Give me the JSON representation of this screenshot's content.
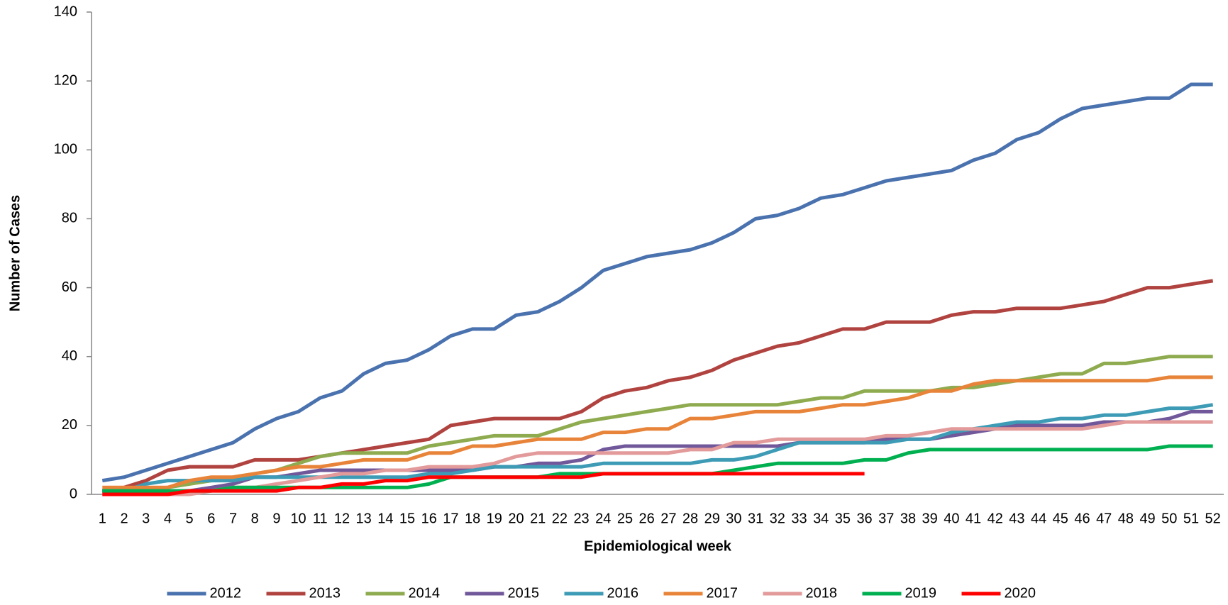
{
  "chart_data": {
    "type": "line",
    "x_label": "Epidemiological week",
    "y_label": "Number of Cases",
    "categories": [
      1,
      2,
      3,
      4,
      5,
      6,
      7,
      8,
      9,
      10,
      11,
      12,
      13,
      14,
      15,
      16,
      17,
      18,
      19,
      20,
      21,
      22,
      23,
      24,
      25,
      26,
      27,
      28,
      29,
      30,
      31,
      32,
      33,
      34,
      35,
      36,
      37,
      38,
      39,
      40,
      41,
      42,
      43,
      44,
      45,
      46,
      47,
      48,
      49,
      50,
      51,
      52
    ],
    "ylim": [
      0,
      140
    ],
    "yticks": [
      0,
      20,
      40,
      60,
      80,
      100,
      120,
      140
    ],
    "grid": false,
    "legend": "bottom",
    "series": [
      {
        "name": "2012",
        "color": "#4a72ae",
        "values": [
          4,
          5,
          7,
          9,
          11,
          13,
          15,
          19,
          22,
          24,
          28,
          30,
          35,
          38,
          39,
          42,
          46,
          48,
          48,
          52,
          53,
          56,
          60,
          65,
          67,
          69,
          70,
          71,
          73,
          76,
          80,
          81,
          83,
          86,
          87,
          89,
          91,
          92,
          93,
          94,
          97,
          99,
          103,
          105,
          109,
          112,
          113,
          114,
          115,
          115,
          119,
          119
        ]
      },
      {
        "name": "2013",
        "color": "#b0433f",
        "values": [
          1,
          2,
          4,
          7,
          8,
          8,
          8,
          10,
          10,
          10,
          11,
          12,
          13,
          14,
          15,
          16,
          20,
          21,
          22,
          22,
          22,
          22,
          24,
          28,
          30,
          31,
          33,
          34,
          36,
          39,
          41,
          43,
          44,
          46,
          48,
          48,
          50,
          50,
          50,
          52,
          53,
          53,
          54,
          54,
          54,
          55,
          56,
          58,
          60,
          60,
          61,
          62
        ]
      },
      {
        "name": "2014",
        "color": "#8eab4f",
        "values": [
          1,
          1,
          1,
          2,
          3,
          4,
          5,
          6,
          7,
          9,
          11,
          12,
          12,
          12,
          12,
          14,
          15,
          16,
          17,
          17,
          17,
          19,
          21,
          22,
          23,
          24,
          25,
          26,
          26,
          26,
          26,
          26,
          27,
          28,
          28,
          30,
          30,
          30,
          30,
          31,
          31,
          32,
          33,
          34,
          35,
          35,
          38,
          38,
          39,
          40,
          40,
          40
        ]
      },
      {
        "name": "2015",
        "color": "#71589a",
        "values": [
          1,
          1,
          1,
          1,
          1,
          2,
          3,
          5,
          5,
          6,
          7,
          7,
          7,
          7,
          7,
          7,
          7,
          7,
          8,
          8,
          9,
          9,
          10,
          13,
          14,
          14,
          14,
          14,
          14,
          14,
          14,
          14,
          15,
          15,
          15,
          15,
          16,
          16,
          16,
          17,
          18,
          19,
          20,
          20,
          20,
          20,
          21,
          21,
          21,
          22,
          24,
          24
        ]
      },
      {
        "name": "2016",
        "color": "#3d9bb5",
        "values": [
          1,
          1,
          3,
          4,
          4,
          4,
          4,
          5,
          5,
          5,
          5,
          5,
          5,
          5,
          5,
          6,
          6,
          7,
          8,
          8,
          8,
          8,
          8,
          9,
          9,
          9,
          9,
          9,
          10,
          10,
          11,
          13,
          15,
          15,
          15,
          15,
          15,
          16,
          16,
          18,
          19,
          20,
          21,
          21,
          22,
          22,
          23,
          23,
          24,
          25,
          25,
          26
        ]
      },
      {
        "name": "2017",
        "color": "#e8843a",
        "values": [
          2,
          2,
          2,
          2,
          4,
          5,
          5,
          6,
          7,
          8,
          8,
          9,
          10,
          10,
          10,
          12,
          12,
          14,
          14,
          15,
          16,
          16,
          16,
          18,
          18,
          19,
          19,
          22,
          22,
          23,
          24,
          24,
          24,
          25,
          26,
          26,
          27,
          28,
          30,
          30,
          32,
          33,
          33,
          33,
          33,
          33,
          33,
          33,
          33,
          34,
          34,
          34
        ]
      },
      {
        "name": "2018",
        "color": "#e39a9a",
        "values": [
          0,
          0,
          0,
          0,
          0,
          1,
          2,
          2,
          3,
          4,
          5,
          6,
          6,
          7,
          7,
          8,
          8,
          8,
          9,
          11,
          12,
          12,
          12,
          12,
          12,
          12,
          12,
          13,
          13,
          15,
          15,
          16,
          16,
          16,
          16,
          16,
          17,
          17,
          18,
          19,
          19,
          19,
          19,
          19,
          19,
          19,
          20,
          21,
          21,
          21,
          21,
          21
        ]
      },
      {
        "name": "2019",
        "color": "#00b050",
        "values": [
          1,
          1,
          1,
          1,
          1,
          1,
          2,
          2,
          2,
          2,
          2,
          2,
          2,
          2,
          2,
          3,
          5,
          5,
          5,
          5,
          5,
          6,
          6,
          6,
          6,
          6,
          6,
          6,
          6,
          7,
          8,
          9,
          9,
          9,
          9,
          10,
          10,
          12,
          13,
          13,
          13,
          13,
          13,
          13,
          13,
          13,
          13,
          13,
          13,
          14,
          14,
          14
        ]
      },
      {
        "name": "2020",
        "color": "#ff0000",
        "values": [
          0,
          0,
          0,
          0,
          1,
          1,
          1,
          1,
          1,
          2,
          2,
          3,
          3,
          4,
          4,
          5,
          5,
          5,
          5,
          5,
          5,
          5,
          5,
          6,
          6,
          6,
          6,
          6,
          6,
          6,
          6,
          6,
          6,
          6,
          6,
          6,
          null,
          null,
          null,
          null,
          null,
          null,
          null,
          null,
          null,
          null,
          null,
          null,
          null,
          null,
          null,
          null
        ]
      }
    ]
  }
}
